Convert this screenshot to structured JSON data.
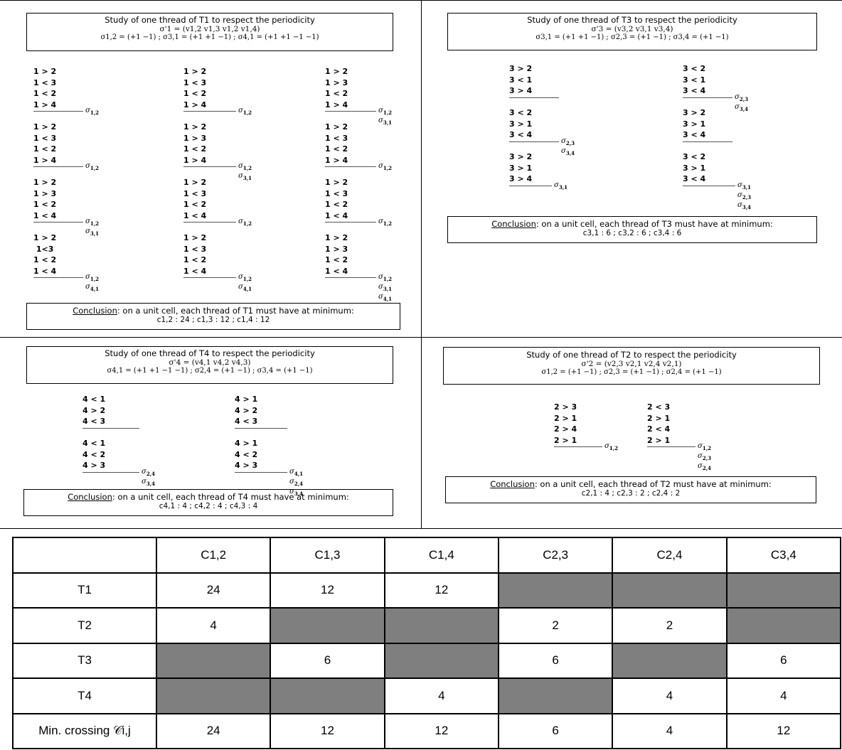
{
  "panel_T1": {
    "title": "Study of one thread of T1 to respect the periodicity",
    "sigma_prime": "σ'1 = (v1,2 v1,3 v1,2 v1,4)",
    "sigmas": "σ1,2 = (+1 −1) ; σ3,1 = (+1 +1 −1) ; σ4,1 = (+1 +1 −1 −1)",
    "groups": [
      [
        "1 > 2",
        "1 < 3",
        "1 < 2",
        "1 > 4"
      ],
      [
        "1 > 2",
        "1 < 3",
        "1 < 2",
        "1 > 4"
      ],
      [
        "1 > 2",
        "1 > 3",
        "1 < 2",
        "1 > 4"
      ],
      [
        "1 > 2",
        "1 < 3",
        "1 < 2",
        "1 > 4"
      ],
      [
        "1 > 2",
        "1 > 3",
        "1 < 2",
        "1 > 4"
      ],
      [
        "1 > 2",
        "1 < 3",
        "1 < 2",
        "1 > 4"
      ],
      [
        "1 > 2",
        "1 > 3",
        "1 < 2",
        "1 < 4"
      ],
      [
        "1 > 2",
        "1 < 3",
        "1 < 2",
        "1 < 4"
      ],
      [
        "1 > 2",
        "1 < 3",
        "1 < 2",
        "1 < 4"
      ],
      [
        "1 > 2",
        " 1<3",
        "1 < 2",
        "1 < 4"
      ],
      [
        "1 > 2",
        "1 < 3",
        "1 < 2",
        "1 < 4"
      ],
      [
        "1 > 2",
        "1 > 3",
        "1 < 2",
        "1 < 4"
      ]
    ],
    "conclusion_label": "Conclusion",
    "conclusion_text": ": on a unit cell, each thread of T1 must have at minimum:",
    "conclusion_values": "c1,2 : 24  ;  c1,3 : 12  ;  c1,4 : 12"
  },
  "panel_T3": {
    "title": "Study of one thread of T3 to respect the periodicity",
    "sigma_prime": "σ'3 = (v3,2 v3,1 v3,4)",
    "sigmas": "σ3,1 = (+1 +1 −1) ; σ2,3 = (+1 −1) ; σ3,4 = (+1 −1)",
    "groups": [
      [
        "3 > 2",
        "3 < 1",
        "3 > 4"
      ],
      [
        "3 < 2",
        "3 < 1",
        "3 < 4"
      ],
      [
        "3 < 2",
        "3 > 1",
        "3 < 4"
      ],
      [
        "3 > 2",
        "3 > 1",
        "3 < 4"
      ],
      [
        "3 > 2",
        "3 > 1",
        "3 > 4"
      ],
      [
        "3 < 2",
        "3 > 1",
        "3 < 4"
      ]
    ],
    "conclusion_label": "Conclusion",
    "conclusion_text": ": on a unit cell, each thread of T3 must have at minimum:",
    "conclusion_values": "c3,1 : 6  ;  c3,2 : 6  ;  c3,4 : 6"
  },
  "panel_T4": {
    "title": "Study of one thread of T4 to respect the periodicity",
    "sigma_prime": "σ'4 = (v4,1 v4,2 v4,3)",
    "sigmas": "σ4,1 = (+1 +1 −1 −1) ; σ2,4 = (+1 −1) ; σ3,4 = (+1 −1)",
    "groups": [
      [
        "4 < 1",
        "4 > 2",
        "4 < 3"
      ],
      [
        "4 > 1",
        "4 > 2",
        "4 < 3"
      ],
      [
        "4 < 1",
        "4 < 2",
        "4 > 3"
      ],
      [
        "4 > 1",
        "4 < 2",
        "4 > 3"
      ]
    ],
    "conclusion_label": "Conclusion",
    "conclusion_text": ": on a unit cell, each thread of T4 must have at minimum:",
    "conclusion_values": "c4,1 : 4  ;  c4,2 : 4  ;  c4,3 : 4"
  },
  "panel_T2": {
    "title": "Study of one thread of T2 to respect the periodicity",
    "sigma_prime": "σ'2 = (v2,3 v2,1 v2,4 v2,1)",
    "sigmas": "σ1,2 = (+1 −1) ; σ2,3 = (+1 −1) ; σ2,4 = (+1 −1)",
    "groups": [
      [
        "2 > 3",
        "2 > 1",
        "2 > 4",
        "2 > 1"
      ],
      [
        "2 < 3",
        "2 > 1",
        "2 < 4",
        "2 > 1"
      ]
    ],
    "conclusion_label": "Conclusion",
    "conclusion_text": ": on a unit cell, each thread of T2 must have at minimum:",
    "conclusion_values": "c2,1 : 4  ;  c2,3 : 2  ;  c2,4 : 2"
  },
  "table": {
    "headers": [
      "",
      "C1,2",
      "C1,3",
      "C1,4",
      "C2,3",
      "C2,4",
      "C3,4"
    ],
    "rows": [
      {
        "label": "T1",
        "cells": [
          "24",
          "12",
          "12",
          "",
          "",
          ""
        ]
      },
      {
        "label": "T2",
        "cells": [
          "4",
          "",
          "",
          "2",
          "2",
          ""
        ]
      },
      {
        "label": "T3",
        "cells": [
          "",
          "6",
          "",
          "6",
          "",
          "6"
        ]
      },
      {
        "label": "T4",
        "cells": [
          "",
          "",
          "4",
          "",
          "4",
          "4"
        ]
      },
      {
        "label": "Min. crossing 𝒞i,j",
        "cells": [
          "24",
          "12",
          "12",
          "6",
          "4",
          "12"
        ]
      }
    ],
    "gray_color": "#7f7f7f"
  }
}
